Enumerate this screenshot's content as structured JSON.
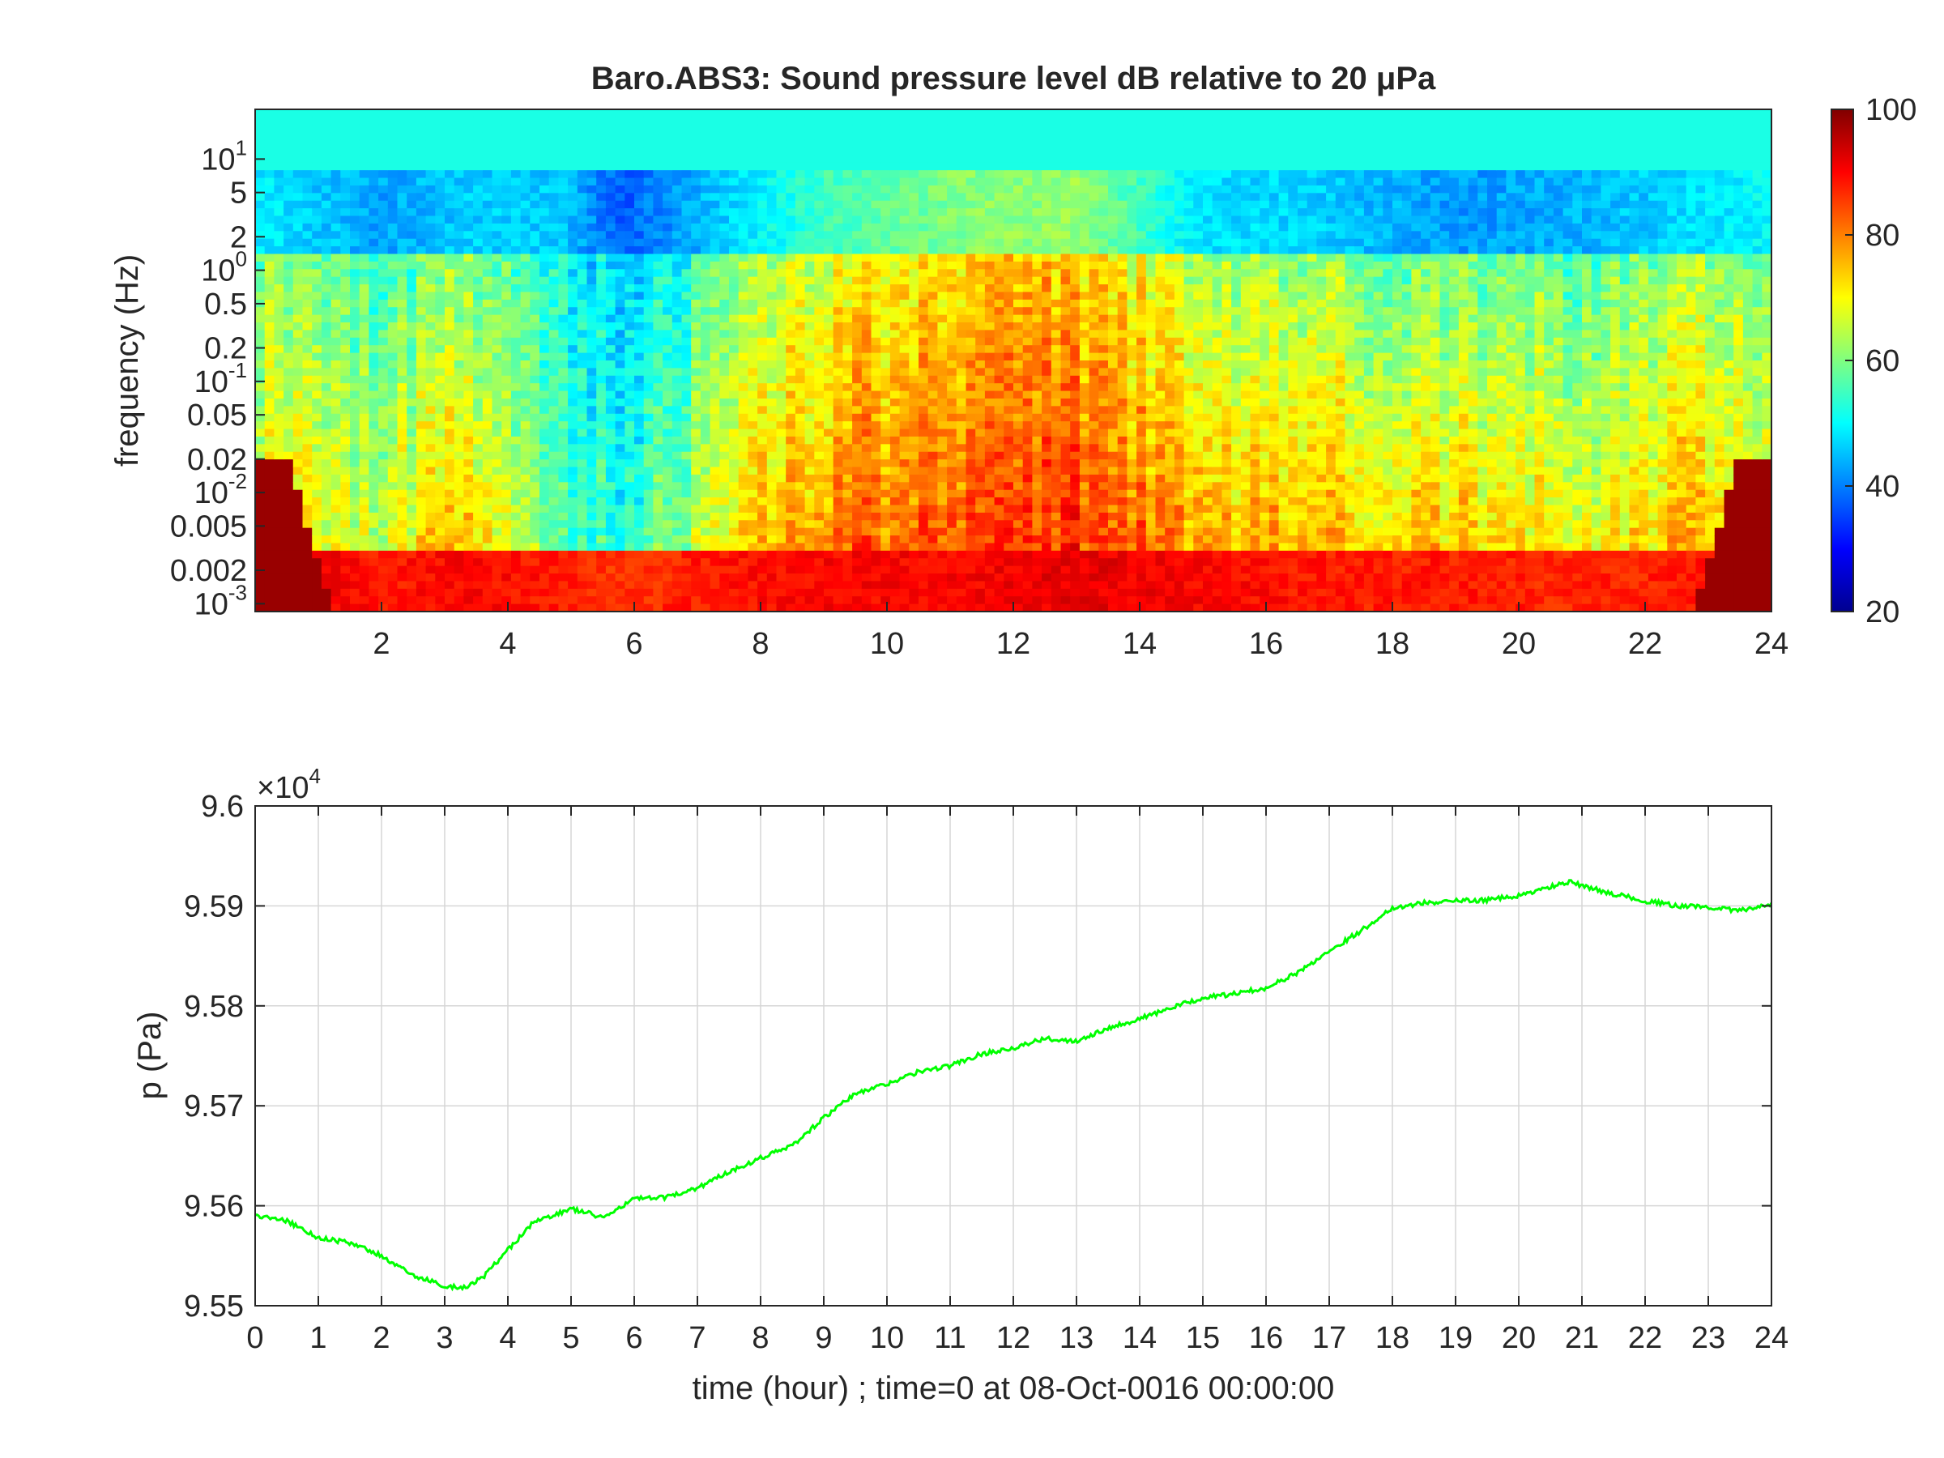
{
  "chart_data": [
    {
      "type": "heatmap",
      "title": "Baro.ABS3: Sound pressure level dB relative to 20 μPa",
      "ylabel": "frequency (Hz)",
      "xlabel": "",
      "x_ticks": [
        2,
        4,
        6,
        8,
        10,
        12,
        14,
        16,
        18,
        20,
        22,
        24
      ],
      "xlim": [
        0,
        24
      ],
      "y_scale": "log",
      "ylim": [
        0.00085,
        28
      ],
      "y_ticks": [
        {
          "value": 10,
          "label": "10",
          "sup": "1"
        },
        {
          "value": 5,
          "label": "5",
          "sup": ""
        },
        {
          "value": 2,
          "label": "2",
          "sup": ""
        },
        {
          "value": 1,
          "label": "10",
          "sup": "0"
        },
        {
          "value": 0.5,
          "label": "0.5",
          "sup": ""
        },
        {
          "value": 0.2,
          "label": "0.2",
          "sup": ""
        },
        {
          "value": 0.1,
          "label": "10",
          "sup": "-1"
        },
        {
          "value": 0.05,
          "label": "0.05",
          "sup": ""
        },
        {
          "value": 0.02,
          "label": "0.02",
          "sup": ""
        },
        {
          "value": 0.01,
          "label": "10",
          "sup": "-2"
        },
        {
          "value": 0.005,
          "label": "0.005",
          "sup": ""
        },
        {
          "value": 0.002,
          "label": "0.002",
          "sup": ""
        },
        {
          "value": 0.001,
          "label": "10",
          "sup": "-3"
        }
      ],
      "colormap": "jet",
      "colorbar": {
        "range": [
          20,
          100
        ],
        "ticks": [
          20,
          40,
          60,
          80,
          100
        ]
      },
      "intensity_profile_dB": {
        "hours": [
          0,
          2,
          3.3,
          4.8,
          5.8,
          7,
          9,
          11,
          13,
          15,
          17,
          19,
          21,
          23,
          24
        ],
        "mid_band_level_dB": [
          72,
          66,
          77,
          60,
          50,
          66,
          80,
          84,
          86,
          78,
          76,
          74,
          70,
          76,
          72
        ],
        "high_band_level_dB": [
          49,
          43,
          46,
          46,
          37,
          44,
          55,
          60,
          62,
          48,
          46,
          42,
          44,
          48,
          50
        ],
        "low_band_level_dB": [
          96,
          88,
          90,
          88,
          86,
          88,
          90,
          90,
          92,
          90,
          88,
          88,
          87,
          88,
          96
        ]
      }
    },
    {
      "type": "line",
      "title": "",
      "xlabel": "time (hour) ; time=0 at 08-Oct-0016 00:00:00",
      "ylabel": "p (Pa)",
      "y_multiplier": {
        "base": "×10",
        "exp": "4"
      },
      "xlim": [
        0,
        24
      ],
      "ylim": [
        9.55,
        9.6
      ],
      "x_ticks": [
        0,
        1,
        2,
        3,
        4,
        5,
        6,
        7,
        8,
        9,
        10,
        11,
        12,
        13,
        14,
        15,
        16,
        17,
        18,
        19,
        20,
        21,
        22,
        23,
        24
      ],
      "y_ticks": [
        "9.55",
        "9.56",
        "9.57",
        "9.58",
        "9.59",
        "9.6"
      ],
      "grid": true,
      "series": [
        {
          "color": "#00ff00",
          "x": [
            0,
            0.5,
            1,
            1.5,
            2,
            2.5,
            3,
            3.3,
            3.6,
            4,
            4.4,
            5,
            5.3,
            5.5,
            6,
            6.5,
            7,
            7.5,
            8,
            8.5,
            9,
            9.5,
            10,
            10.5,
            11,
            11.5,
            12,
            12.5,
            13,
            13.5,
            14,
            14.5,
            15,
            15.5,
            16,
            16.5,
            17,
            17.5,
            18,
            18.5,
            19,
            19.5,
            20,
            20.5,
            20.8,
            21,
            21.5,
            22,
            22.5,
            23,
            23.5,
            24
          ],
          "y": [
            9.559,
            9.5585,
            9.5568,
            9.5563,
            9.555,
            9.553,
            9.552,
            9.5518,
            9.5528,
            9.5556,
            9.5583,
            9.5597,
            9.5592,
            9.5588,
            9.5607,
            9.5608,
            9.5618,
            9.5634,
            9.5648,
            9.566,
            9.5688,
            9.5712,
            9.5722,
            9.5734,
            9.574,
            9.5752,
            9.5758,
            9.5767,
            9.5765,
            9.5778,
            9.5787,
            9.5798,
            9.5808,
            9.5812,
            9.5818,
            9.5833,
            9.5855,
            9.5875,
            9.5898,
            9.5903,
            9.5905,
            9.5906,
            9.591,
            9.5919,
            9.5924,
            9.592,
            9.5912,
            9.5905,
            9.59,
            9.5899,
            9.5895,
            9.5902
          ]
        }
      ]
    }
  ]
}
